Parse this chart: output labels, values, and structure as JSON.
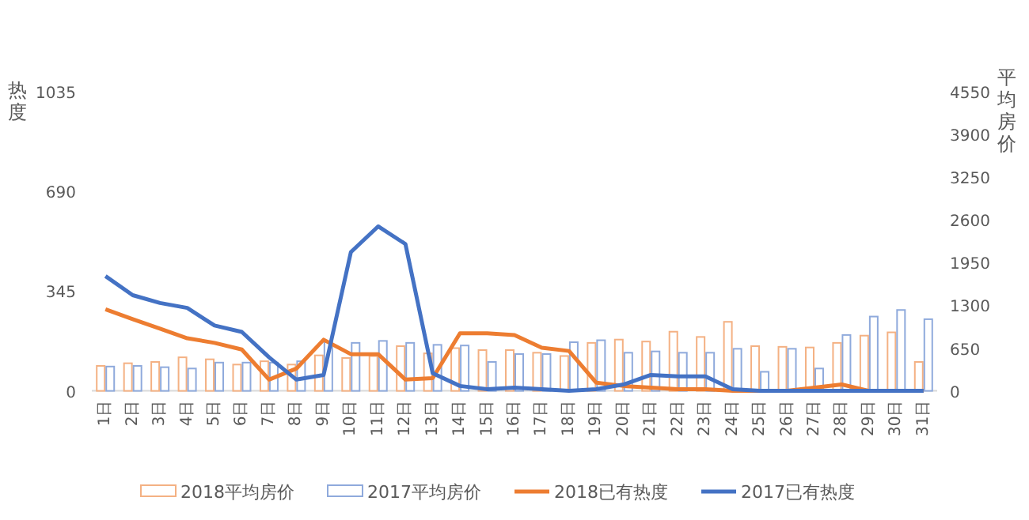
{
  "chart_data": {
    "type": "bar",
    "ylabel": "热度",
    "y2label": "平均房价",
    "categories": [
      "1日",
      "2日",
      "3日",
      "4日",
      "5日",
      "6日",
      "7日",
      "8日",
      "9日",
      "10日",
      "11日",
      "12日",
      "13日",
      "14日",
      "15日",
      "16日",
      "17日",
      "18日",
      "19日",
      "20日",
      "21日",
      "22日",
      "23日",
      "24日",
      "25日",
      "26日",
      "27日",
      "28日",
      "29日",
      "30日",
      "31日"
    ],
    "series": [
      {
        "name": "2018平均房价",
        "axis": "y2",
        "color": "#f4b183",
        "values": [
          380,
          420,
          440,
          510,
          480,
          400,
          450,
          400,
          540,
          500,
          530,
          680,
          570,
          650,
          620,
          620,
          580,
          530,
          730,
          780,
          750,
          900,
          820,
          1050,
          680,
          670,
          660,
          730,
          840,
          890,
          440
        ]
      },
      {
        "name": "2017平均房价",
        "axis": "y2",
        "color": "#8faadc",
        "values": [
          370,
          380,
          360,
          340,
          430,
          430,
          430,
          450,
          740,
          730,
          760,
          730,
          700,
          690,
          440,
          560,
          560,
          740,
          770,
          580,
          600,
          580,
          580,
          640,
          290,
          640,
          340,
          850,
          1130,
          1230,
          1090
        ]
      },
      {
        "name": "2018已有热度",
        "type": "line",
        "axis": "y",
        "color": "#ed7d31",
        "values": [
          282,
          248,
          215,
          182,
          166,
          143,
          39,
          77,
          177,
          127,
          127,
          39,
          44,
          199,
          199,
          193,
          149,
          138,
          28,
          17,
          11,
          6,
          6,
          0,
          0,
          0,
          11,
          22,
          0,
          0,
          0
        ]
      },
      {
        "name": "2017已有热度",
        "type": "line",
        "axis": "y",
        "color": "#4472c4",
        "values": [
          397,
          331,
          304,
          287,
          226,
          204,
          116,
          39,
          55,
          480,
          569,
          508,
          61,
          17,
          6,
          11,
          6,
          0,
          6,
          22,
          55,
          50,
          50,
          6,
          0,
          0,
          0,
          0,
          0,
          0,
          0
        ]
      }
    ],
    "ylim": [
      0,
      1035
    ],
    "yticks": [
      0,
      345,
      690,
      1035
    ],
    "y2lim": [
      0,
      4550
    ],
    "y2ticks": [
      0,
      650,
      1300,
      1950,
      2600,
      3250,
      3900,
      4550
    ],
    "grid": false,
    "legend": "bottom",
    "marker": "none",
    "line_style": "solid"
  }
}
